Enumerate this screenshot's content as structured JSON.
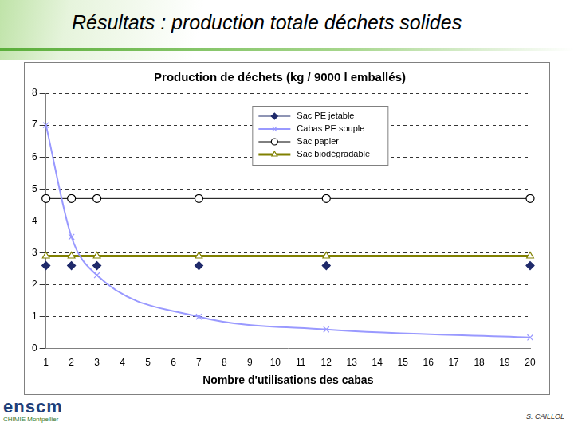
{
  "header": {
    "title": "Résultats : production totale déchets solides"
  },
  "chart_data": {
    "type": "line",
    "title": "Production de déchets (kg / 9000 l emballés)",
    "x_label": "Nombre d'utilisations des cabas",
    "x": [
      1,
      2,
      3,
      7,
      12,
      20
    ],
    "series": [
      {
        "name": "Sac PE jetable",
        "color": "#1f2a6b",
        "marker": "diamond",
        "line_style": "none",
        "values": [
          2.6,
          2.6,
          2.6,
          2.6,
          2.6,
          2.6
        ]
      },
      {
        "name": "Cabas PE souple",
        "color": "#9999ff",
        "marker": "x",
        "line_style": "smooth",
        "values": [
          7.0,
          3.5,
          2.3,
          1.0,
          0.6,
          0.35
        ]
      },
      {
        "name": "Sac papier",
        "color": "#000000",
        "marker": "circle",
        "line_style": "solid",
        "values": [
          4.7,
          4.7,
          4.7,
          4.7,
          4.7,
          4.7
        ]
      },
      {
        "name": "Sac biodégradable",
        "color": "#808000",
        "marker": "triangle",
        "line_style": "solid",
        "values": [
          2.9,
          2.9,
          2.9,
          2.9,
          2.9,
          2.9
        ]
      }
    ],
    "xlim": [
      1,
      20
    ],
    "xticks": [
      1,
      2,
      3,
      4,
      5,
      6,
      7,
      8,
      9,
      10,
      11,
      12,
      13,
      14,
      15,
      16,
      17,
      18,
      19,
      20
    ],
    "ylim": [
      0,
      8
    ],
    "yticks": [
      0,
      1,
      2,
      3,
      4,
      5,
      6,
      7,
      8
    ],
    "grid": true,
    "legend": "top"
  },
  "footer": {
    "logo": "enscm",
    "logo_subtitle": "CHIMIE Montpellier",
    "author": "S. CAILLOL"
  }
}
